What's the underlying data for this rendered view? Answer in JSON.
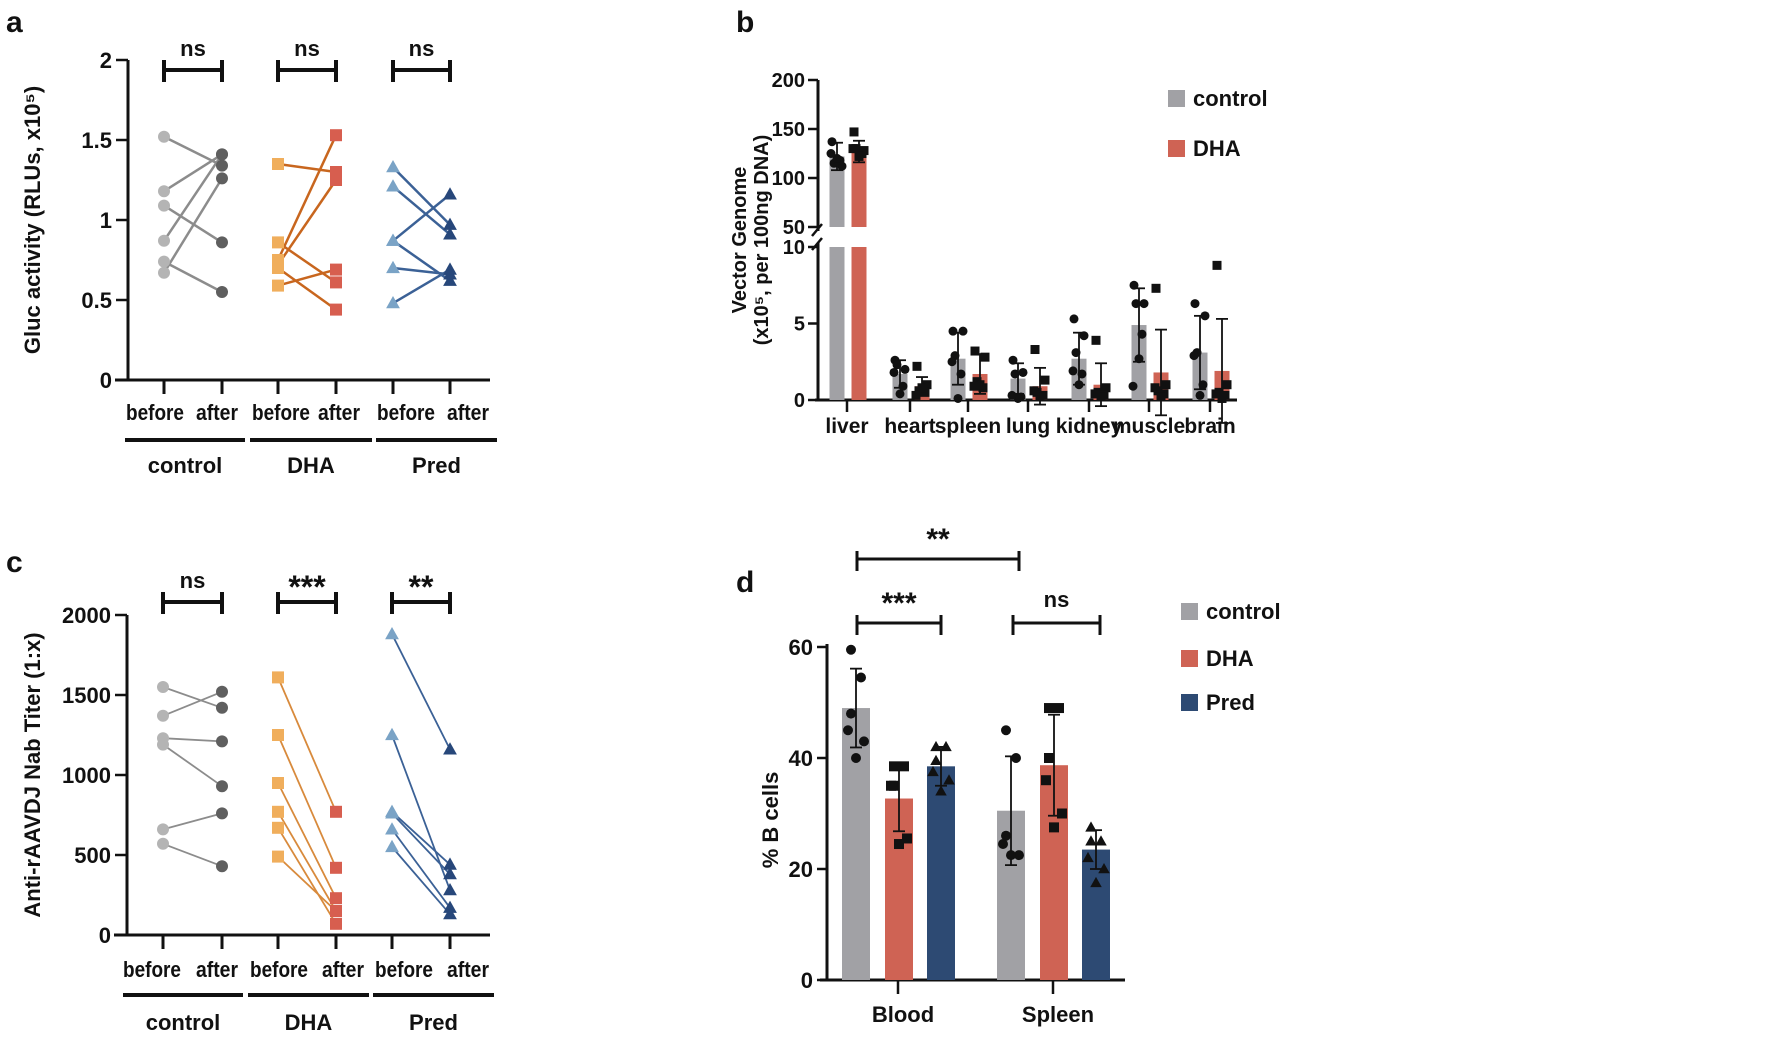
{
  "chart_data": [
    {
      "panel": "a",
      "type": "line",
      "subtype": "paired before/after",
      "ylabel": "Gluc activity (RLUs, x10⁵)",
      "ylim": [
        0,
        2
      ],
      "yticks": [
        "0",
        "0.5",
        "1",
        "1.5",
        "2"
      ],
      "ytick_values": [
        0,
        0.5,
        1,
        1.5,
        2
      ],
      "groups": [
        {
          "name": "control",
          "conditions": [
            "before",
            "after"
          ],
          "significance": "ns",
          "marker": "circle",
          "colors": {
            "before": "#b4b4b4",
            "after": "#5f5f5f",
            "line": "#8c8c8c"
          },
          "pairs": [
            [
              1.52,
              1.34
            ],
            [
              1.18,
              1.41
            ],
            [
              1.09,
              0.86
            ],
            [
              0.87,
              1.41
            ],
            [
              0.74,
              0.55
            ],
            [
              0.67,
              1.26
            ]
          ]
        },
        {
          "name": "DHA",
          "conditions": [
            "before",
            "after"
          ],
          "significance": "ns",
          "marker": "square",
          "colors": {
            "before": "#f0ae5c",
            "after": "#d75e4f",
            "line": "#c8661e"
          },
          "pairs": [
            [
              1.35,
              1.3
            ],
            [
              0.86,
              0.61
            ],
            [
              0.75,
              1.53
            ],
            [
              0.72,
              1.25
            ],
            [
              0.7,
              0.44
            ],
            [
              0.59,
              0.69
            ]
          ]
        },
        {
          "name": "Pred",
          "conditions": [
            "before",
            "after"
          ],
          "significance": "ns",
          "marker": "triangle",
          "colors": {
            "before": "#7aa3c6",
            "after": "#27477a",
            "line": "#3b6196"
          },
          "pairs": [
            [
              1.33,
              0.97
            ],
            [
              1.21,
              0.91
            ],
            [
              0.87,
              0.62
            ],
            [
              0.87,
              1.16
            ],
            [
              0.7,
              0.66
            ],
            [
              0.48,
              0.69
            ]
          ]
        }
      ]
    },
    {
      "panel": "b",
      "type": "bar",
      "ylabel": [
        "Vector Genome",
        "(x10⁵, per 100ng DNA)"
      ],
      "ylim": [
        0,
        200
      ],
      "axis_break": [
        10,
        50
      ],
      "yticks": [
        "0",
        "5",
        "10",
        "50",
        "100",
        "150",
        "200"
      ],
      "ytick_values": [
        0,
        5,
        10,
        50,
        100,
        150,
        200
      ],
      "categories": [
        "liver",
        "heart",
        "spleen",
        "lung",
        "kidney",
        "muscle",
        "brain"
      ],
      "legend_position": "top-right",
      "series": [
        {
          "name": "control",
          "color": "#a1a1a5",
          "marker": "circle",
          "values": [
            122,
            1.7,
            2.7,
            1.4,
            2.7,
            4.9,
            3.1
          ],
          "sd": [
            14,
            0.9,
            1.7,
            1.0,
            1.7,
            2.4,
            2.4
          ],
          "points": [
            [
              137,
              112,
              115,
              118,
              120,
              125
            ],
            [
              2.6,
              2.0,
              2.3,
              0.9,
              0.4,
              1.8
            ],
            [
              4.5,
              4.5,
              2.9,
              1.7,
              0.1,
              2.5
            ],
            [
              2.6,
              1.8,
              1.7,
              0.2,
              0.1,
              0.3
            ],
            [
              5.3,
              4.2,
              3.1,
              1.7,
              1.0,
              1.9
            ],
            [
              7.5,
              6.3,
              6.3,
              4.3,
              2.7,
              0.9
            ],
            [
              6.3,
              5.5,
              3.1,
              1.0,
              0.3,
              2.9
            ]
          ]
        },
        {
          "name": "DHA",
          "color": "#cf6354",
          "marker": "square",
          "values": [
            127,
            0.9,
            1.7,
            0.9,
            1.0,
            1.8,
            1.9
          ],
          "sd": [
            11,
            0.6,
            1.3,
            1.2,
            1.4,
            2.8,
            3.4
          ],
          "points": [
            [
              147,
              128,
              130,
              125,
              122,
              130
            ],
            [
              2.2,
              1.0,
              0.6,
              0.5,
              0.8,
              0.3
            ],
            [
              3.2,
              2.8,
              1.2,
              0.8,
              1.0,
              0.9
            ],
            [
              3.3,
              1.3,
              0.5,
              0.3,
              0.2,
              0.6
            ],
            [
              3.9,
              0.8,
              0.5,
              0.3,
              0.2,
              0.4
            ],
            [
              7.3,
              1.0,
              0.6,
              0.4,
              0.2,
              0.8
            ],
            [
              8.8,
              1.0,
              0.5,
              0.3,
              0.1,
              0.4
            ]
          ]
        }
      ]
    },
    {
      "panel": "c",
      "type": "line",
      "subtype": "paired before/after",
      "ylabel": "Anti-rAAVDJ Nab Titer (1:x)",
      "ylim": [
        0,
        2000
      ],
      "yticks": [
        "0",
        "500",
        "1000",
        "1500",
        "2000"
      ],
      "ytick_values": [
        0,
        500,
        1000,
        1500,
        2000
      ],
      "groups": [
        {
          "name": "control",
          "conditions": [
            "before",
            "after"
          ],
          "significance": "ns",
          "marker": "circle",
          "colors": {
            "before": "#b4b4b4",
            "after": "#5f5f5f",
            "line": "#8c8c8c"
          },
          "pairs": [
            [
              1550,
              1420
            ],
            [
              1370,
              1520
            ],
            [
              1230,
              1210
            ],
            [
              1190,
              930
            ],
            [
              660,
              760
            ],
            [
              570,
              430
            ]
          ]
        },
        {
          "name": "DHA",
          "conditions": [
            "before",
            "after"
          ],
          "significance": "***",
          "marker": "square",
          "colors": {
            "before": "#f0ae5c",
            "after": "#d75e4f",
            "line": "#d88a3c"
          },
          "pairs": [
            [
              1610,
              770
            ],
            [
              1250,
              420
            ],
            [
              950,
              230
            ],
            [
              770,
              150
            ],
            [
              670,
              70
            ],
            [
              490,
              150
            ]
          ]
        },
        {
          "name": "Pred",
          "conditions": [
            "before",
            "after"
          ],
          "significance": "**",
          "marker": "triangle",
          "colors": {
            "before": "#7aa3c6",
            "after": "#27477a",
            "line": "#3b6196"
          },
          "pairs": [
            [
              1880,
              1160
            ],
            [
              1250,
              280
            ],
            [
              770,
              440
            ],
            [
              760,
              380
            ],
            [
              660,
              170
            ],
            [
              550,
              130
            ]
          ]
        }
      ]
    },
    {
      "panel": "d",
      "type": "bar",
      "ylabel": "% B cells",
      "ylim": [
        0,
        60
      ],
      "yticks": [
        "0",
        "20",
        "40",
        "60"
      ],
      "ytick_values": [
        0,
        20,
        40,
        60
      ],
      "categories": [
        "Blood",
        "Spleen"
      ],
      "legend_position": "right",
      "series": [
        {
          "name": "control",
          "color": "#a1a1a5",
          "marker": "circle",
          "values": [
            49.0,
            30.5
          ],
          "sd": [
            7.1,
            9.8
          ],
          "points": [
            [
              59.5,
              54.5,
              48,
              45,
              43,
              40
            ],
            [
              45,
              40,
              26,
              24.5,
              22.5,
              22.5
            ]
          ]
        },
        {
          "name": "DHA",
          "color": "#cf6354",
          "marker": "square",
          "values": [
            32.7,
            38.7
          ],
          "sd": [
            5.9,
            9.1
          ],
          "points": [
            [
              38.5,
              38.5,
              35,
              35,
              25.5,
              24.5
            ],
            [
              49,
              49,
              40,
              36,
              30,
              27.5
            ]
          ]
        },
        {
          "name": "Pred",
          "color": "#2d4a73",
          "marker": "triangle",
          "values": [
            38.5,
            23.5
          ],
          "sd": [
            3.5,
            3.5
          ],
          "points": [
            [
              42,
              42,
              39.5,
              37.5,
              36,
              34
            ],
            [
              27.5,
              25,
              25,
              22,
              20,
              17.5
            ]
          ]
        }
      ],
      "comparisons": [
        {
          "category": "Blood",
          "from": "control",
          "to": "DHA",
          "label": "***"
        },
        {
          "category": "Blood",
          "from": "control",
          "to": "Pred",
          "label": "**"
        },
        {
          "category": "Spleen",
          "from": "control",
          "to": "Pred",
          "label": "ns"
        }
      ]
    }
  ]
}
